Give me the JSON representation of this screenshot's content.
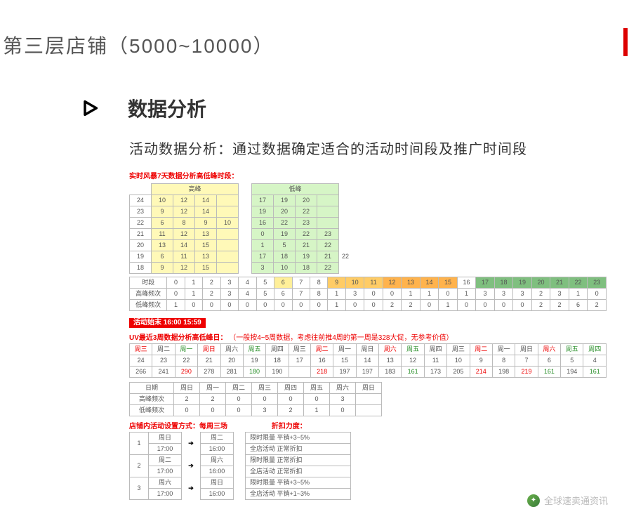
{
  "title": "第三层店铺（5000~10000）",
  "section_title": "数据分析",
  "subtitle": "活动数据分析：通过数据确定适合的活动时间段及推广时间段",
  "watermark": "全球速卖通资讯",
  "t1": {
    "heading": "实时风暴7天数据分析高低峰时段：",
    "hdr_hi": "高峰",
    "hdr_lo": "低峰",
    "rows": [
      {
        "h": "24",
        "hi": [
          "10",
          "12",
          "14",
          ""
        ],
        "lo": [
          "17",
          "19",
          "20",
          ""
        ]
      },
      {
        "h": "23",
        "hi": [
          "9",
          "12",
          "14",
          ""
        ],
        "lo": [
          "19",
          "20",
          "22",
          ""
        ]
      },
      {
        "h": "22",
        "hi": [
          "6",
          "8",
          "9",
          "10"
        ],
        "lo": [
          "16",
          "22",
          "23",
          ""
        ]
      },
      {
        "h": "21",
        "hi": [
          "11",
          "12",
          "13",
          ""
        ],
        "lo": [
          "0",
          "19",
          "22",
          "23"
        ]
      },
      {
        "h": "20",
        "hi": [
          "13",
          "14",
          "15",
          ""
        ],
        "lo": [
          "1",
          "5",
          "21",
          "22"
        ]
      },
      {
        "h": "19",
        "hi": [
          "6",
          "11",
          "13",
          ""
        ],
        "lo": [
          "17",
          "18",
          "19",
          "21"
        ],
        "ex": "22"
      },
      {
        "h": "18",
        "hi": [
          "9",
          "12",
          "15",
          ""
        ],
        "lo": [
          "3",
          "10",
          "18",
          "22"
        ]
      }
    ],
    "freq_label_time": "时段",
    "freq_label_hi": "高峰频次",
    "freq_label_lo": "低峰频次",
    "hours": [
      "0",
      "1",
      "2",
      "3",
      "4",
      "5",
      "6",
      "7",
      "8",
      "9",
      "10",
      "11",
      "12",
      "13",
      "14",
      "15",
      "16",
      "17",
      "18",
      "19",
      "20",
      "21",
      "22",
      "23"
    ],
    "freq_hi": [
      "0",
      "1",
      "2",
      "3",
      "4",
      "5",
      "6",
      "7",
      "8",
      "1",
      "3",
      "0",
      "0",
      "1",
      "1",
      "0",
      "1",
      "3",
      "3",
      "3",
      "2",
      "3",
      "1",
      "0"
    ],
    "freq_lo": [
      "1",
      "0",
      "0",
      "0",
      "0",
      "0",
      "0",
      "0",
      "0",
      "1",
      "0",
      "0",
      "2",
      "2",
      "0",
      "1",
      "0",
      "0",
      "0",
      "0",
      "2",
      "2",
      "6",
      "2"
    ],
    "hour_bg": [
      "",
      "",
      "",
      "",
      "",
      "",
      "bg-yel",
      "",
      "",
      "bg-org",
      "bg-org",
      "bg-org",
      "bg-org2",
      "bg-org2",
      "bg-org2",
      "bg-org2",
      "",
      "bg-grn",
      "bg-grn",
      "bg-grn",
      "bg-grn",
      "bg-grn",
      "bg-grn",
      "bg-grn"
    ]
  },
  "event_tag": "活动始末  16:00  15:59",
  "t2": {
    "heading": "UV最近3周数据分析高低峰日：",
    "note": "（一般按4~5周数据，考虑往前推4周的第一周是328大促，无参考价值）",
    "days_hdr": [
      "周三",
      "周二",
      "周一",
      "周日",
      "周六",
      "周五",
      "周四",
      "周三",
      "周二",
      "周一",
      "周日",
      "周六",
      "周五",
      "周四",
      "周三",
      "周二",
      "周一",
      "周日",
      "周六",
      "周五",
      "周四"
    ],
    "days_color": [
      "red-t",
      "",
      "green-t",
      "red-t",
      "",
      "green-t",
      "",
      "",
      "red-t",
      "",
      "",
      "red-t",
      "green-t",
      "",
      "",
      "red-t",
      "",
      "",
      "red-t",
      "green-t",
      "green-t"
    ],
    "r1": [
      "24",
      "23",
      "22",
      "21",
      "20",
      "19",
      "18",
      "17",
      "16",
      "15",
      "14",
      "13",
      "12",
      "11",
      "10",
      "9",
      "8",
      "7",
      "6",
      "5",
      "4"
    ],
    "r2": [
      "266",
      "241",
      "290",
      "278",
      "281",
      "180",
      "190",
      "",
      "218",
      "197",
      "197",
      "183",
      "161",
      "173",
      "205",
      "214",
      "198",
      "219",
      "161",
      "194",
      "161"
    ],
    "r2_color": [
      "",
      "",
      "red-t",
      "",
      "",
      "green-t",
      "",
      "",
      "red-t",
      "",
      "",
      "",
      "green-t",
      "",
      "",
      "red-t",
      "",
      "red-t",
      "green-t",
      "",
      "green-t"
    ],
    "wk_hdr": [
      "周日",
      "周一",
      "周二",
      "周三",
      "周四",
      "周五",
      "周六",
      "周日"
    ],
    "lbl_date": "日期",
    "lbl_hi": "高峰频次",
    "lbl_lo": "低峰频次",
    "wk_hi": [
      "2",
      "2",
      "0",
      "0",
      "0",
      "0",
      "3",
      ""
    ],
    "wk_lo": [
      "0",
      "0",
      "0",
      "3",
      "2",
      "1",
      "0",
      ""
    ]
  },
  "t3": {
    "heading": "店铺内活动设置方式：每周三场",
    "col2": "折扣力度：",
    "rows": [
      {
        "n": "1",
        "a": "周日",
        "at": "17:00",
        "b": "周二",
        "bt": "16:00",
        "d1": "限时限量  平销+3~5%",
        "d2": "全店活动  正常折扣"
      },
      {
        "n": "2",
        "a": "周二",
        "at": "17:00",
        "b": "周六",
        "bt": "16:00",
        "d1": "限时限量  正常折扣",
        "d2": "全店活动  正常折扣"
      },
      {
        "n": "3",
        "a": "周六",
        "at": "17:00",
        "b": "周日",
        "bt": "16:00",
        "d1": "限时限量  平销+3~5%",
        "d2": "全店活动  平销+1~3%"
      }
    ]
  }
}
